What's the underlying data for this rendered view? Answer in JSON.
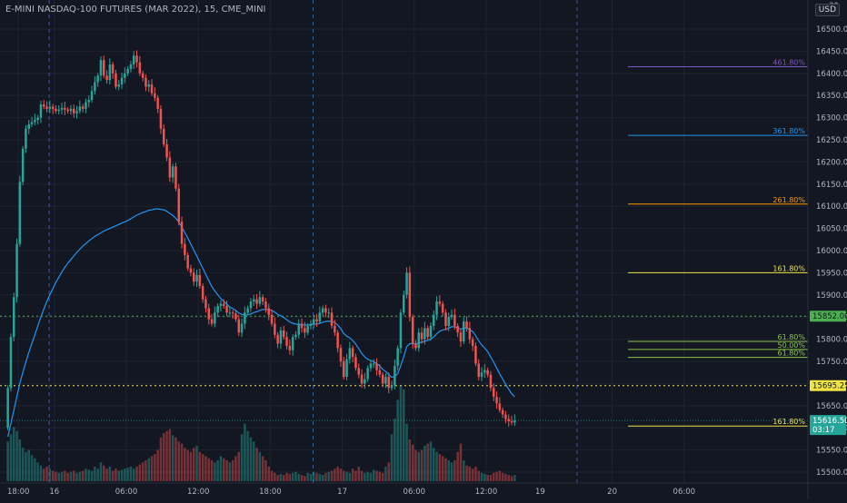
{
  "title": "E-MINI NASDAQ-100 FUTURES (MAR 2022), 15, CME_MINI",
  "currency": "USD",
  "colors": {
    "background": "#131722",
    "grid": "#1f2330",
    "up": "#26a69a",
    "down": "#ef5350",
    "ma": "#2196f3",
    "axis_text": "#b2b5be",
    "session_line": "#3a5a99",
    "price_line_1": "#4caf50",
    "price_line_2": "#f0e442"
  },
  "price_axis": {
    "min": 15475,
    "max": 16550,
    "ticks": [
      16500,
      16450,
      16400,
      16350,
      16300,
      16250,
      16200,
      16150,
      16100,
      16050,
      16000,
      15950,
      15900,
      15850,
      15800,
      15750,
      15700,
      15650,
      15600,
      15550,
      15500
    ],
    "top_tick_partial": "30"
  },
  "time_axis": {
    "labels": [
      {
        "label": "18:00",
        "bar": 4
      },
      {
        "label": "16",
        "bar": 16
      },
      {
        "label": "06:00",
        "bar": 40
      },
      {
        "label": "12:00",
        "bar": 64
      },
      {
        "label": "18:00",
        "bar": 88
      },
      {
        "label": "17",
        "bar": 112
      },
      {
        "label": "06:00",
        "bar": 136
      },
      {
        "label": "12:00",
        "bar": 160
      },
      {
        "label": "19",
        "bar": 178
      },
      {
        "label": "20",
        "bar": 202
      },
      {
        "label": "06:00",
        "bar": 226
      }
    ],
    "session_breaks": [
      7,
      95,
      183
    ]
  },
  "price_labels": [
    {
      "value": 15852.0,
      "text": "15852.00",
      "color": "#4caf50",
      "dotted": true
    },
    {
      "value": 15695.25,
      "text": "15695.25",
      "color": "#f0e442",
      "dotted": true
    },
    {
      "value": 15616.5,
      "text": "15616.50",
      "sub": "03:17",
      "color": "#26a69a",
      "dotted": false
    }
  ],
  "fib_levels": [
    {
      "label": "461.80%",
      "value": 16415,
      "color": "#7e57c2"
    },
    {
      "label": "361.80%",
      "value": 16260,
      "color": "#2196f3"
    },
    {
      "label": "261.80%",
      "value": 16105,
      "color": "#ff9800"
    },
    {
      "label": "161.80%",
      "value": 15950,
      "color": "#f0e442"
    },
    {
      "label": "61.80%",
      "value": 15795,
      "color": "#8bc34a"
    },
    {
      "label": "50.00%",
      "value": 15777,
      "color": "#8bc34a"
    },
    {
      "label": "61.80%",
      "value": 15759,
      "color": "#8bc34a"
    },
    {
      "label": "161.80%",
      "value": 15604,
      "color": "#f0e442"
    }
  ],
  "chart_data": {
    "type": "candlestick",
    "title": "E-MINI NASDAQ-100 FUTURES (MAR 2022), 15, CME_MINI",
    "ylim": [
      15475,
      16550
    ],
    "close": [
      15690,
      15805,
      15895,
      16015,
      16155,
      16230,
      16275,
      16285,
      16290,
      16295,
      16300,
      16330,
      16325,
      16320,
      16325,
      16320,
      16315,
      16318,
      16322,
      16318,
      16315,
      16320,
      16310,
      16315,
      16325,
      16320,
      16335,
      16340,
      16360,
      16380,
      16395,
      16430,
      16395,
      16385,
      16420,
      16400,
      16370,
      16375,
      16390,
      16400,
      16410,
      16420,
      16440,
      16425,
      16400,
      16390,
      16370,
      16375,
      16355,
      16345,
      16320,
      16275,
      16240,
      16210,
      16165,
      16190,
      16140,
      16065,
      16015,
      15990,
      15960,
      15950,
      15930,
      15945,
      15920,
      15890,
      15870,
      15845,
      15835,
      15860,
      15875,
      15880,
      15875,
      15860,
      15860,
      15858,
      15845,
      15815,
      15835,
      15860,
      15870,
      15885,
      15890,
      15880,
      15895,
      15885,
      15870,
      15855,
      15835,
      15810,
      15790,
      15820,
      15805,
      15785,
      15775,
      15805,
      15810,
      15835,
      15825,
      15815,
      15830,
      15835,
      15845,
      15840,
      15860,
      15870,
      15860,
      15860,
      15830,
      15815,
      15780,
      15750,
      15715,
      15755,
      15780,
      15760,
      15735,
      15720,
      15700,
      15710,
      15735,
      15745,
      15745,
      15730,
      15720,
      15700,
      15715,
      15690,
      15695,
      15740,
      15780,
      15860,
      15900,
      15950,
      15850,
      15790,
      15780,
      15815,
      15800,
      15825,
      15805,
      15830,
      15855,
      15885,
      15880,
      15860,
      15830,
      15850,
      15855,
      15830,
      15815,
      15795,
      15840,
      15825,
      15800,
      15785,
      15745,
      15715,
      15725,
      15730,
      15720,
      15690,
      15670,
      15655,
      15640,
      15630,
      15620,
      15615,
      15612,
      15616.5
    ],
    "ma": [
      15580,
      15610,
      15640,
      15670,
      15700,
      15725,
      15748,
      15770,
      15790,
      15810,
      15830,
      15850,
      15868,
      15885,
      15900,
      15914,
      15928,
      15940,
      15952,
      15962,
      15972,
      15980,
      15988,
      15996,
      16003,
      16010,
      16016,
      16022,
      16027,
      16032,
      16036,
      16040,
      16044,
      16047,
      16050,
      16053,
      16056,
      16059,
      16062,
      16065,
      16068,
      16072,
      16076,
      16080,
      16083,
      16086,
      16088,
      16091,
      16092,
      16094,
      16094,
      16093,
      16092,
      16089,
      16084,
      16079,
      16073,
      16064,
      16053,
      16041,
      16028,
      16015,
      16001,
      15988,
      15974,
      15960,
      15946,
      15932,
      15919,
      15909,
      15900,
      15892,
      15885,
      15879,
      15873,
      15869,
      15865,
      15859,
      15856,
      15855,
      15855,
      15857,
      15860,
      15862,
      15865,
      15867,
      15867,
      15867,
      15865,
      15861,
      15856,
      15853,
      15849,
      15844,
      15839,
      15836,
      15834,
      15834,
      15833,
      15832,
      15832,
      15833,
      15834,
      15834,
      15836,
      15838,
      15840,
      15841,
      15840,
      15838,
      15832,
      15824,
      15813,
      15807,
      15803,
      15797,
      15789,
      15779,
      15768,
      15760,
      15755,
      15752,
      15749,
      15745,
      15740,
      15732,
      15727,
      15720,
      15714,
      15716,
      15722,
      15740,
      15760,
      15783,
      15790,
      15790,
      15789,
      15792,
      15793,
      15796,
      15797,
      15800,
      15805,
      15812,
      15818,
      15821,
      15822,
      15825,
      15828,
      15828,
      15826,
      15823,
      15825,
      15825,
      15822,
      15817,
      15808,
      15796,
      15787,
      15780,
      15772,
      15760,
      15748,
      15735,
      15722,
      15710,
      15698,
      15687,
      15677,
      15670
    ],
    "volume": [
      38,
      45,
      52,
      48,
      40,
      32,
      28,
      30,
      25,
      22,
      18,
      15,
      12,
      14,
      12,
      10,
      9,
      8,
      9,
      10,
      8,
      9,
      10,
      8,
      9,
      10,
      12,
      11,
      10,
      14,
      12,
      18,
      15,
      12,
      14,
      10,
      12,
      10,
      11,
      12,
      13,
      14,
      12,
      14,
      16,
      18,
      20,
      22,
      24,
      26,
      30,
      42,
      46,
      48,
      50,
      44,
      42,
      38,
      36,
      32,
      30,
      28,
      32,
      34,
      28,
      26,
      24,
      22,
      20,
      18,
      20,
      24,
      22,
      20,
      18,
      20,
      24,
      28,
      45,
      55,
      48,
      42,
      38,
      32,
      28,
      24,
      20,
      14,
      10,
      8,
      6,
      7,
      6,
      8,
      7,
      8,
      9,
      7,
      6,
      5,
      8,
      7,
      9,
      8,
      7,
      6,
      8,
      9,
      10,
      12,
      14,
      12,
      10,
      9,
      8,
      12,
      10,
      14,
      10,
      8,
      9,
      8,
      11,
      10,
      9,
      8,
      14,
      18,
      45,
      60,
      78,
      92,
      88,
      55,
      40,
      35,
      30,
      28,
      30,
      34,
      36,
      38,
      32,
      28,
      26,
      24,
      22,
      20,
      18,
      20,
      28,
      36,
      20,
      15,
      14,
      12,
      14,
      10,
      8,
      7,
      6,
      6,
      8,
      9,
      10,
      8,
      7,
      6,
      5,
      6
    ],
    "ma_label": "moving average"
  }
}
